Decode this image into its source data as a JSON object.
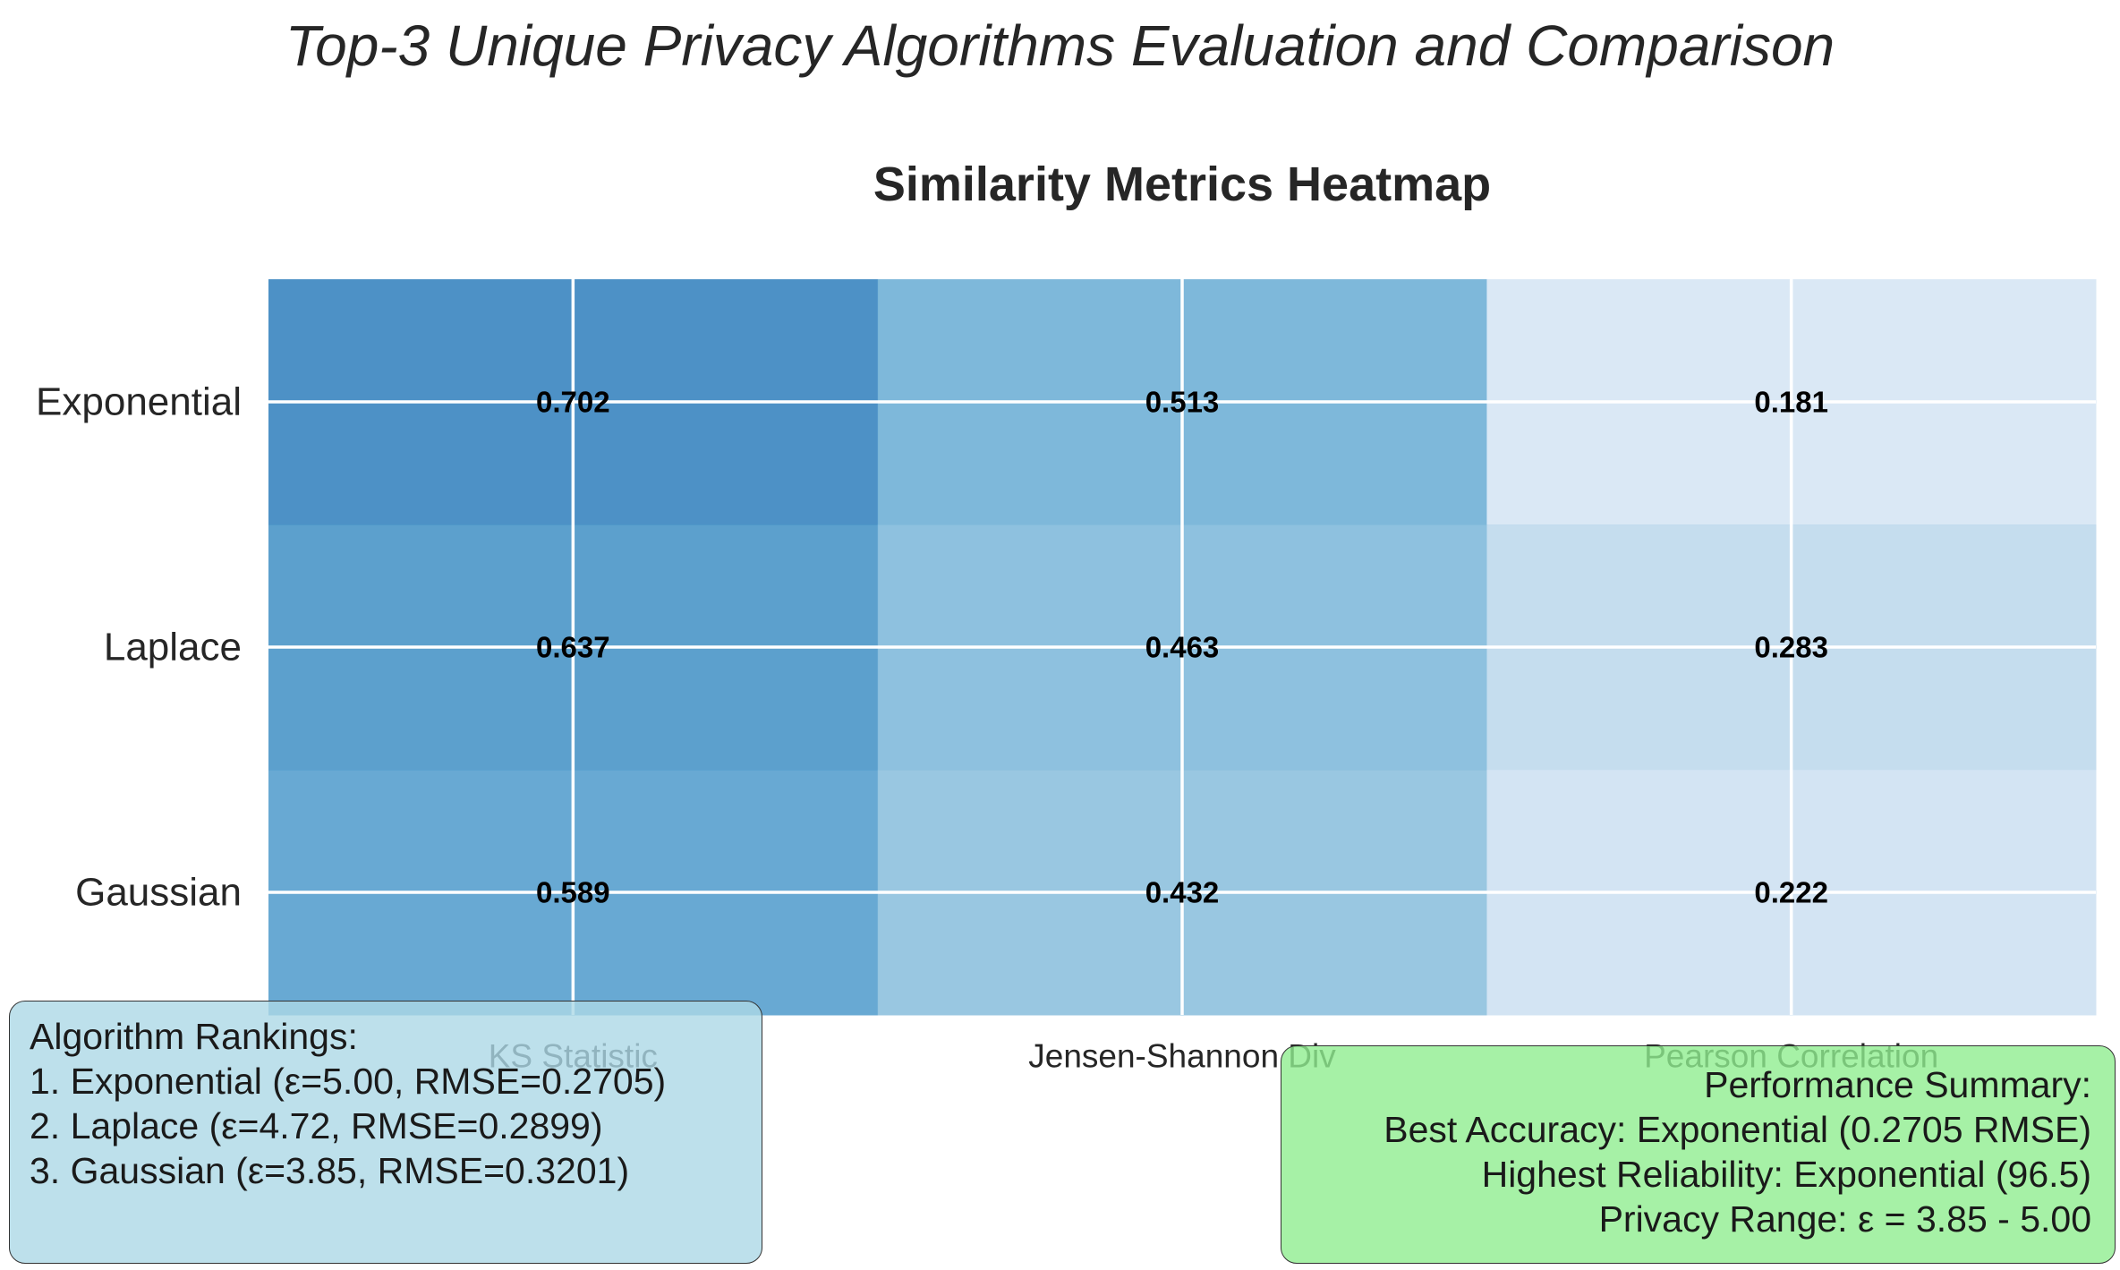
{
  "suptitle": "Top-3 Unique Privacy Algorithms Evaluation and Comparison",
  "chart_data": {
    "type": "heatmap",
    "title": "Similarity Metrics Heatmap",
    "rows": [
      "Exponential",
      "Laplace",
      "Gaussian"
    ],
    "columns": [
      "KS Statistic",
      "Jensen-Shannon Div",
      "Pearson Correlation"
    ],
    "values": [
      [
        0.702,
        0.513,
        0.181
      ],
      [
        0.637,
        0.463,
        0.283
      ],
      [
        0.589,
        0.432,
        0.222
      ]
    ],
    "colormap": "Blues",
    "color_range": [
      0,
      1
    ],
    "grid": true
  },
  "rankings": {
    "title": "Algorithm Rankings:",
    "items": [
      "1. Exponential (ε=5.00, RMSE=0.2705)",
      "2. Laplace (ε=4.72, RMSE=0.2899)",
      "3. Gaussian (ε=3.85, RMSE=0.3201)"
    ]
  },
  "summary": {
    "title": "Performance Summary:",
    "lines": [
      "Best Accuracy: Exponential (0.2705 RMSE)",
      "Highest Reliability: Exponential (96.5)",
      "Privacy Range: ε = 3.85 - 5.00"
    ]
  },
  "colors": {
    "rankings_box": "#add8e6",
    "summary_box": "#90ee90",
    "grid_lines": "#ffffff",
    "cell_text": "#000000"
  }
}
